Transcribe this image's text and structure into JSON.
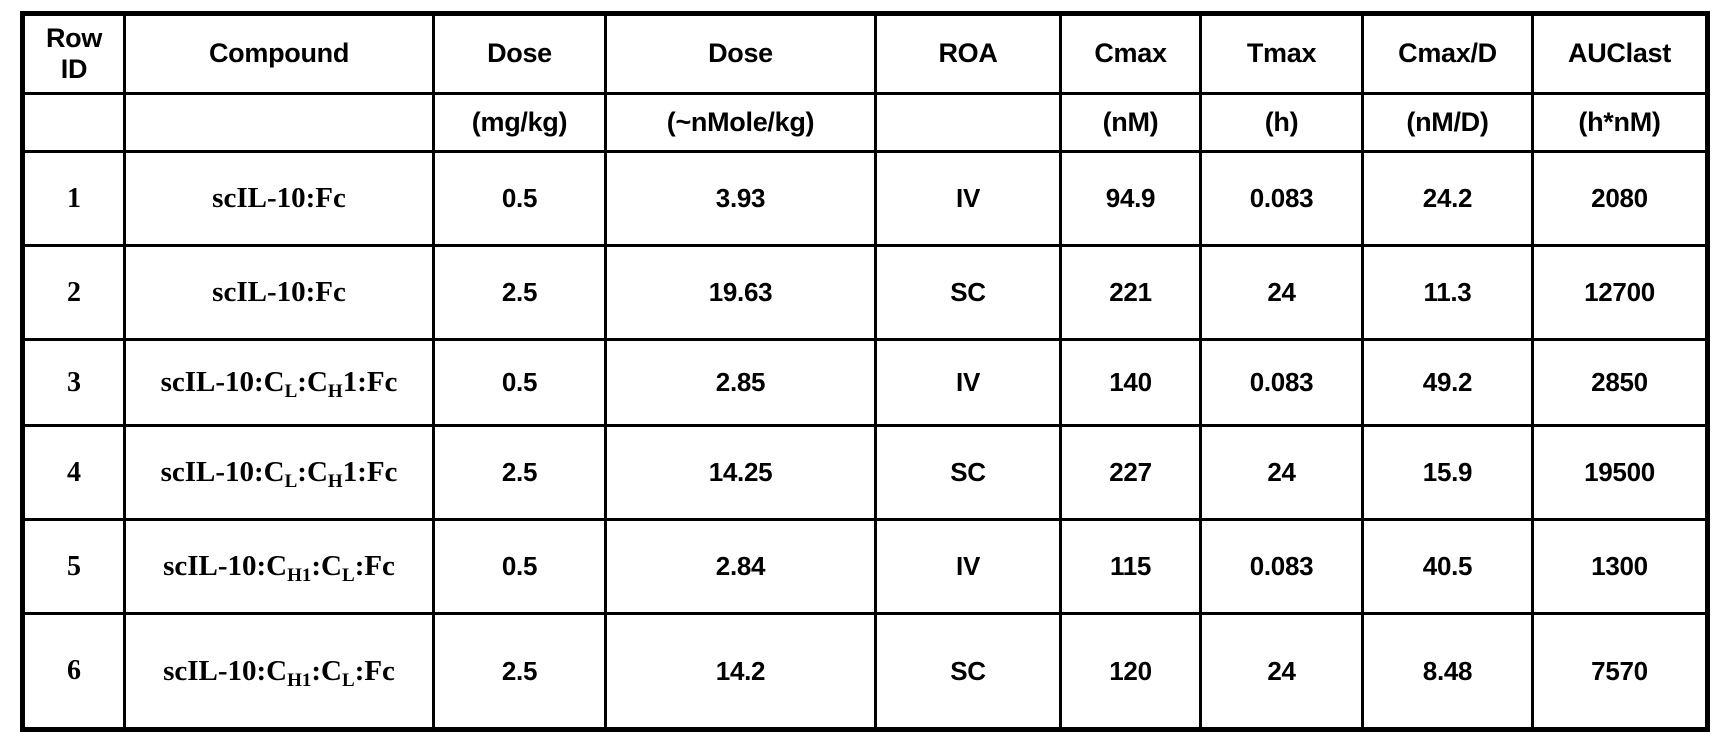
{
  "colors": {
    "text": "#000000",
    "border": "#000000",
    "background": "#ffffff"
  },
  "table": {
    "columns": [
      {
        "key": "row_id",
        "label": "Row\nID",
        "unit": ""
      },
      {
        "key": "compound",
        "label": "Compound",
        "unit": ""
      },
      {
        "key": "dose_mg",
        "label": "Dose",
        "unit": "(mg/kg)"
      },
      {
        "key": "dose_nmole",
        "label": "Dose",
        "unit": "(~nMole/kg)"
      },
      {
        "key": "roa",
        "label": "ROA",
        "unit": ""
      },
      {
        "key": "cmax",
        "label": "Cmax",
        "unit": "(nM)"
      },
      {
        "key": "tmax",
        "label": "Tmax",
        "unit": "(h)"
      },
      {
        "key": "cmax_d",
        "label": "Cmax/D",
        "unit": "(nM/D)"
      },
      {
        "key": "auclast",
        "label": "AUClast",
        "unit": "(h*nM)"
      }
    ],
    "rows": [
      {
        "row_id": "1",
        "compound": [
          {
            "t": "scIL-10:Fc"
          }
        ],
        "dose_mg": "0.5",
        "dose_nmole": "3.93",
        "roa": "IV",
        "cmax": "94.9",
        "tmax": "0.083",
        "cmax_d": "24.2",
        "auclast": "2080"
      },
      {
        "row_id": "2",
        "compound": [
          {
            "t": "scIL-10:Fc"
          }
        ],
        "dose_mg": "2.5",
        "dose_nmole": "19.63",
        "roa": "SC",
        "cmax": "221",
        "tmax": "24",
        "cmax_d": "11.3",
        "auclast": "12700"
      },
      {
        "row_id": "3",
        "compound": [
          {
            "t": "scIL-10:C"
          },
          {
            "s": "L"
          },
          {
            "t": ":C"
          },
          {
            "s": "H"
          },
          {
            "t": "1:Fc"
          }
        ],
        "dose_mg": "0.5",
        "dose_nmole": "2.85",
        "roa": "IV",
        "cmax": "140",
        "tmax": "0.083",
        "cmax_d": "49.2",
        "auclast": "2850"
      },
      {
        "row_id": "4",
        "compound": [
          {
            "t": "scIL-10:C"
          },
          {
            "s": "L"
          },
          {
            "t": ":C"
          },
          {
            "s": "H"
          },
          {
            "t": "1:Fc"
          }
        ],
        "dose_mg": "2.5",
        "dose_nmole": "14.25",
        "roa": "SC",
        "cmax": "227",
        "tmax": "24",
        "cmax_d": "15.9",
        "auclast": "19500"
      },
      {
        "row_id": "5",
        "compound": [
          {
            "t": "scIL-10:C"
          },
          {
            "s": "H1"
          },
          {
            "t": ":C"
          },
          {
            "s": "L"
          },
          {
            "t": ":Fc"
          }
        ],
        "dose_mg": "0.5",
        "dose_nmole": "2.84",
        "roa": "IV",
        "cmax": "115",
        "tmax": "0.083",
        "cmax_d": "40.5",
        "auclast": "1300"
      },
      {
        "row_id": "6",
        "compound": [
          {
            "t": "scIL-10:C"
          },
          {
            "s": "H1"
          },
          {
            "t": ":C"
          },
          {
            "s": "L"
          },
          {
            "t": ":Fc"
          }
        ],
        "dose_mg": "2.5",
        "dose_nmole": "14.2",
        "roa": "SC",
        "cmax": "120",
        "tmax": "24",
        "cmax_d": "8.48",
        "auclast": "7570"
      }
    ]
  },
  "chart_data": {
    "type": "table",
    "title": "",
    "columns": [
      "Row ID",
      "Compound",
      "Dose (mg/kg)",
      "Dose (~nMole/kg)",
      "ROA",
      "Cmax (nM)",
      "Tmax (h)",
      "Cmax/D (nM/D)",
      "AUClast (h*nM)"
    ],
    "rows": [
      [
        "1",
        "scIL-10:Fc",
        "0.5",
        "3.93",
        "IV",
        "94.9",
        "0.083",
        "24.2",
        "2080"
      ],
      [
        "2",
        "scIL-10:Fc",
        "2.5",
        "19.63",
        "SC",
        "221",
        "24",
        "11.3",
        "12700"
      ],
      [
        "3",
        "scIL-10:CL:CH1:Fc",
        "0.5",
        "2.85",
        "IV",
        "140",
        "0.083",
        "49.2",
        "2850"
      ],
      [
        "4",
        "scIL-10:CL:CH1:Fc",
        "2.5",
        "14.25",
        "SC",
        "227",
        "24",
        "15.9",
        "19500"
      ],
      [
        "5",
        "scIL-10:CH1:CL:Fc",
        "0.5",
        "2.84",
        "IV",
        "115",
        "0.083",
        "40.5",
        "1300"
      ],
      [
        "6",
        "scIL-10:CH1:CL:Fc",
        "2.5",
        "14.2",
        "SC",
        "120",
        "24",
        "8.48",
        "7570"
      ]
    ]
  }
}
